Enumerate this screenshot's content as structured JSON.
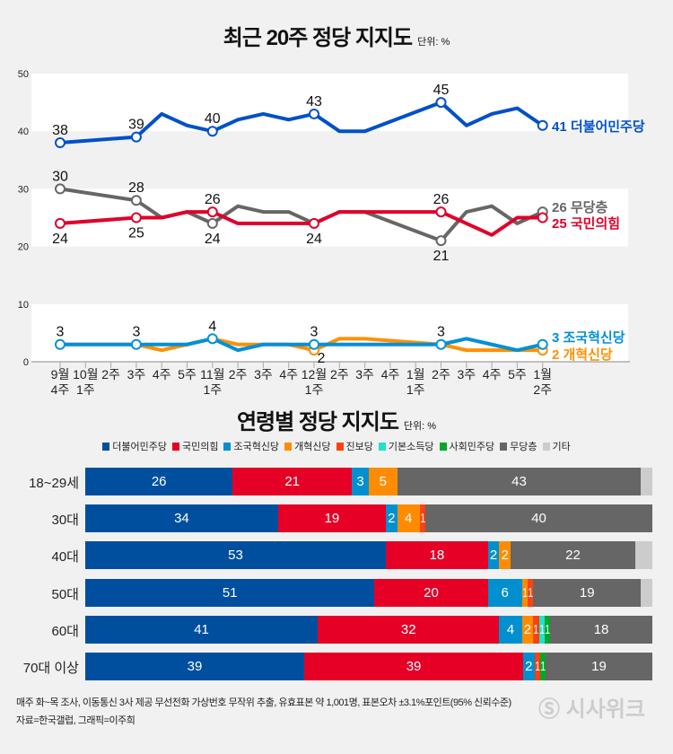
{
  "chart_data": [
    {
      "type": "line",
      "title": "최근 20주 정당 지지도",
      "unit": "단위: %",
      "ylim": [
        0,
        50
      ],
      "yticks": [
        0,
        10,
        20,
        30,
        40,
        50
      ],
      "categories": [
        [
          "9월",
          "4주"
        ],
        [
          "10월",
          "1주"
        ],
        [
          "2주",
          ""
        ],
        [
          "3주",
          ""
        ],
        [
          "4주",
          ""
        ],
        [
          "5주",
          ""
        ],
        [
          "11월",
          "1주"
        ],
        [
          "2주",
          ""
        ],
        [
          "3주",
          ""
        ],
        [
          "4주",
          ""
        ],
        [
          "12월",
          "1주"
        ],
        [
          "2주",
          ""
        ],
        [
          "3주",
          ""
        ],
        [
          "4주",
          ""
        ],
        [
          "1월",
          "1주"
        ],
        [
          "2주",
          ""
        ],
        [
          "3주",
          ""
        ],
        [
          "4주",
          ""
        ],
        [
          "5주",
          ""
        ],
        [
          "1월",
          "2주"
        ]
      ],
      "series": [
        {
          "name": "더불어민주당",
          "end_label": "41 더불어민주당",
          "color": "#0050c8",
          "values": [
            38,
            null,
            null,
            39,
            43,
            41,
            40,
            42,
            43,
            42,
            43,
            40,
            40,
            null,
            null,
            45,
            41,
            43,
            44,
            41
          ],
          "labels": [
            [
              0,
              "above"
            ],
            [
              3,
              "above"
            ],
            [
              6,
              "above"
            ],
            [
              10,
              "above"
            ],
            [
              15,
              "above"
            ]
          ]
        },
        {
          "name": "무당층",
          "end_label": "26 무당층",
          "color": "#666666",
          "values": [
            30,
            null,
            null,
            28,
            25,
            26,
            24,
            27,
            26,
            26,
            24,
            26,
            26,
            null,
            null,
            21,
            26,
            27,
            24,
            26
          ],
          "labels": [
            [
              0,
              "above"
            ],
            [
              3,
              "above"
            ],
            [
              6,
              "below"
            ],
            [
              15,
              "below"
            ]
          ]
        },
        {
          "name": "국민의힘",
          "end_label": "25 국민의힘",
          "color": "#e0002a",
          "values": [
            24,
            null,
            null,
            25,
            25,
            26,
            26,
            24,
            24,
            24,
            24,
            26,
            26,
            null,
            null,
            26,
            24,
            22,
            25,
            25
          ],
          "labels": [
            [
              0,
              "below"
            ],
            [
              3,
              "below"
            ],
            [
              6,
              "above"
            ],
            [
              10,
              "below"
            ],
            [
              15,
              "above"
            ]
          ]
        },
        {
          "name": "개혁신당",
          "end_label": "2 개혁신당",
          "color": "#ff9000",
          "values": [
            3,
            null,
            null,
            3,
            2,
            3,
            4,
            3,
            3,
            3,
            2,
            4,
            4,
            null,
            null,
            3,
            2,
            2,
            2,
            2
          ],
          "labels": [
            [
              10,
              "below"
            ]
          ]
        },
        {
          "name": "조국혁신당",
          "end_label": "3 조국혁신당",
          "color": "#0090d8",
          "values": [
            3,
            null,
            null,
            3,
            3,
            3,
            4,
            2,
            3,
            3,
            3,
            3,
            3,
            null,
            null,
            3,
            4,
            3,
            2,
            3
          ],
          "labels": [
            [
              0,
              "above"
            ],
            [
              3,
              "above"
            ],
            [
              6,
              "above"
            ],
            [
              10,
              "above"
            ],
            [
              15,
              "above"
            ]
          ]
        }
      ]
    },
    {
      "type": "bar",
      "stacked": true,
      "orientation": "horizontal",
      "title": "연령별 정당 지지도",
      "unit": "단위: %",
      "legend": [
        {
          "name": "더불어민주당",
          "color": "#004f9f"
        },
        {
          "name": "국민의힘",
          "color": "#e60026"
        },
        {
          "name": "조국혁신당",
          "color": "#0090d0"
        },
        {
          "name": "개혁신당",
          "color": "#ff8c00"
        },
        {
          "name": "진보당",
          "color": "#ff4010"
        },
        {
          "name": "기본소득당",
          "color": "#22e0cc"
        },
        {
          "name": "사회민주당",
          "color": "#00a82a"
        },
        {
          "name": "무당층",
          "color": "#666666"
        },
        {
          "name": "기타",
          "color": "#cccccc"
        }
      ],
      "categories": [
        "18~29세",
        "30대",
        "40대",
        "50대",
        "60대",
        "70대 이상"
      ],
      "rows": [
        [
          26,
          21,
          3,
          5,
          0,
          0,
          0,
          43,
          2
        ],
        [
          34,
          19,
          2,
          4,
          1,
          0,
          0,
          40,
          0
        ],
        [
          53,
          18,
          2,
          2,
          0,
          0,
          0,
          22,
          3
        ],
        [
          51,
          20,
          6,
          1,
          1,
          0,
          0,
          19,
          2
        ],
        [
          41,
          32,
          4,
          2,
          1,
          1,
          1,
          18,
          0
        ],
        [
          39,
          39,
          2,
          0,
          1,
          0,
          1,
          19,
          0
        ]
      ]
    }
  ],
  "footer": {
    "line1": "매주 화~목 조사, 이동통신 3사 제공 무선전화 가상번호 무작위 추출, 유효표본 약 1,001명, 표본오차 ±3.1%포인트(95% 신뢰수준)",
    "line2": "자료=한국갤럽, 그래픽=이주희",
    "logo": "시사위크"
  }
}
